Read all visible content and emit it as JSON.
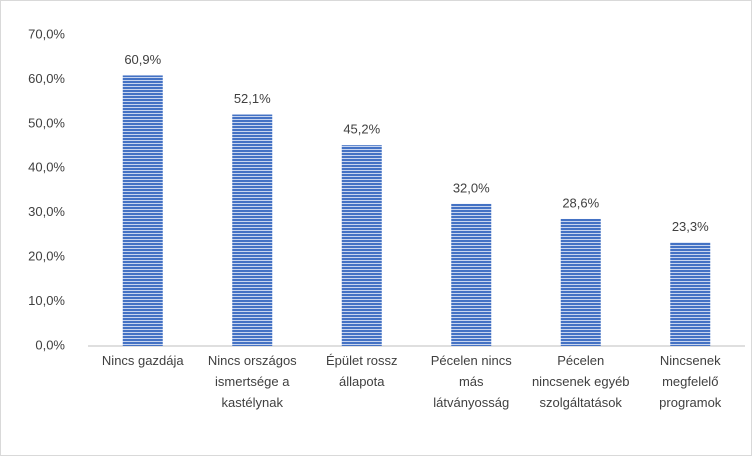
{
  "chart_data": {
    "type": "bar",
    "categories": [
      "Nincs gazdája",
      "Nincs országos ismertsége a kastélynak",
      "Épület rossz állapota",
      "Pécelen nincs más látványosság",
      "Pécelen nincsenek egyéb szolgáltatások",
      "Nincsenek megfelelő programok"
    ],
    "values": [
      60.9,
      52.1,
      45.2,
      32.0,
      28.6,
      23.3
    ],
    "value_labels": [
      "60,9%",
      "52,1%",
      "45,2%",
      "32,0%",
      "28,6%",
      "23,3%"
    ],
    "color": "#4472c4",
    "ylim": [
      0,
      70
    ],
    "yticks": [
      {
        "value": 0,
        "label": "0,0%"
      },
      {
        "value": 10,
        "label": "10,0%"
      },
      {
        "value": 20,
        "label": "20,0%"
      },
      {
        "value": 30,
        "label": "30,0%"
      },
      {
        "value": 40,
        "label": "40,0%"
      },
      {
        "value": 50,
        "label": "50,0%"
      },
      {
        "value": 60,
        "label": "60,0%"
      },
      {
        "value": 70,
        "label": "70,0%"
      }
    ],
    "grid": false
  }
}
